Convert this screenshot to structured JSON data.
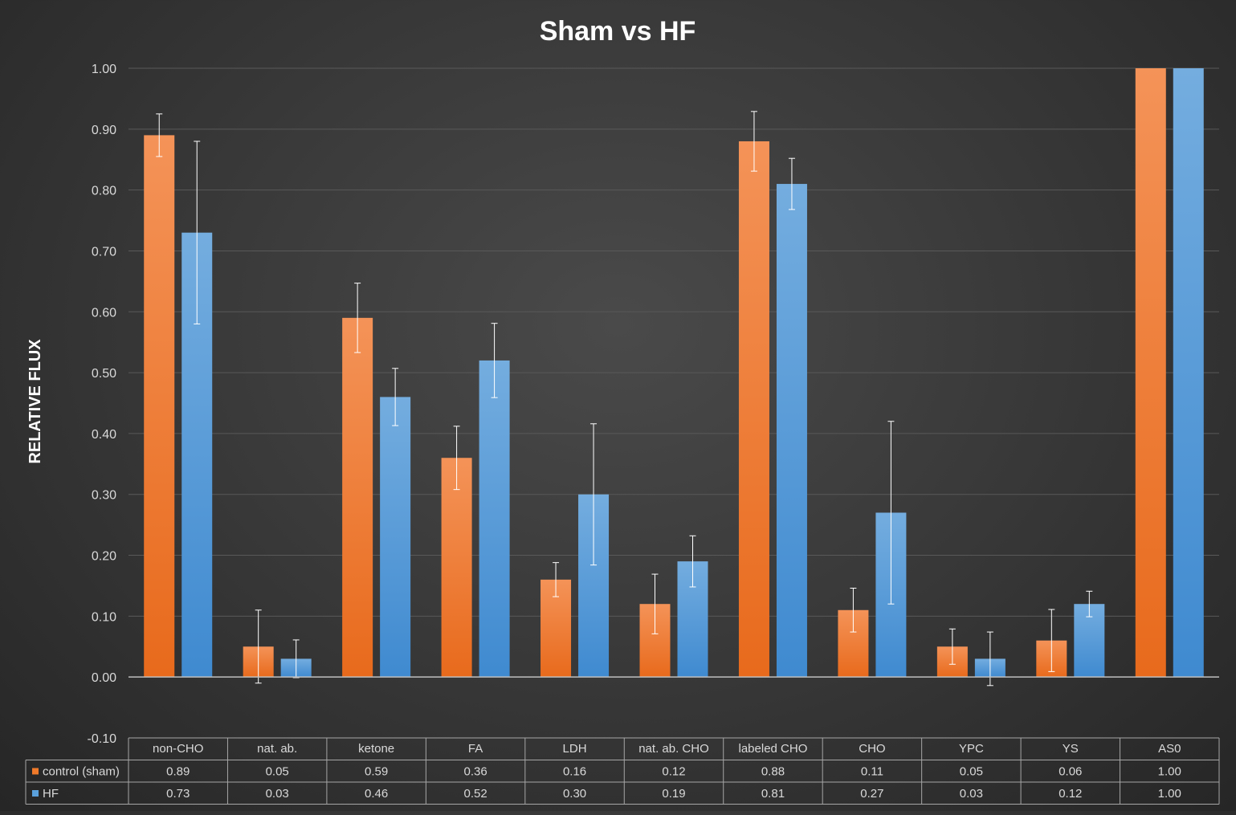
{
  "chart_data": {
    "type": "bar",
    "title": "Sham vs HF",
    "ylabel": "RELATIVE FLUX",
    "xlabel": "",
    "ylim": [
      -0.1,
      1.0
    ],
    "yticks": [
      1.0,
      0.9,
      0.8,
      0.7,
      0.6,
      0.5,
      0.4,
      0.3,
      0.2,
      0.1,
      0.0,
      -0.1
    ],
    "grid": true,
    "legend": "data-table",
    "categories": [
      "non-CHO",
      "nat. ab.",
      "ketone",
      "FA",
      "LDH",
      "nat. ab. CHO",
      "labeled CHO",
      "CHO",
      "YPC",
      "YS",
      "AS0"
    ],
    "series": [
      {
        "name": "control (sham)",
        "color": "#f07a2a",
        "values": [
          0.89,
          0.05,
          0.59,
          0.36,
          0.16,
          0.12,
          0.88,
          0.11,
          0.05,
          0.06,
          1.0
        ],
        "error": [
          0.035,
          0.06,
          0.057,
          0.052,
          0.028,
          0.049,
          0.049,
          0.036,
          0.029,
          0.051,
          0
        ],
        "labels": [
          "0.89",
          "0.05",
          "0.59",
          "0.36",
          "0.16",
          "0.12",
          "0.88",
          "0.11",
          "0.05",
          "0.06",
          "1.00"
        ]
      },
      {
        "name": "HF",
        "color": "#5aa0dc",
        "values": [
          0.73,
          0.03,
          0.46,
          0.52,
          0.3,
          0.19,
          0.81,
          0.27,
          0.03,
          0.12,
          1.0
        ],
        "error": [
          0.15,
          0.031,
          0.047,
          0.061,
          0.116,
          0.042,
          0.042,
          0.15,
          0.044,
          0.021,
          0
        ],
        "labels": [
          "0.73",
          "0.03",
          "0.46",
          "0.52",
          "0.30",
          "0.19",
          "0.81",
          "0.27",
          "0.03",
          "0.12",
          "1.00"
        ]
      }
    ]
  }
}
